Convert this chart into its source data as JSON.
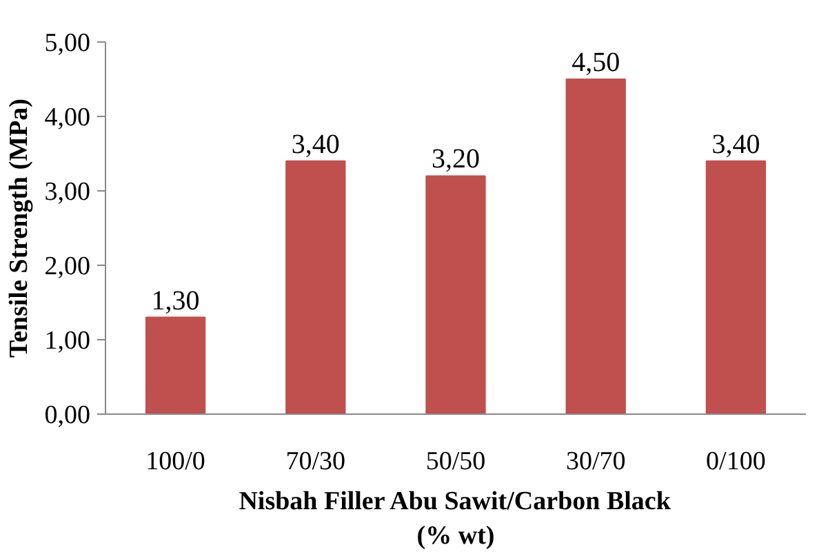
{
  "chart_data": {
    "type": "bar",
    "ylabel": "Tensile Strength (MPa)",
    "xlabel": "Nisbah Filler Abu Sawit/Carbon Black\n(% wt)",
    "categories": [
      "100/0",
      "70/30",
      "50/50",
      "30/70",
      "0/100"
    ],
    "values": [
      1.3,
      3.4,
      3.2,
      4.5,
      3.4
    ],
    "value_labels": [
      "1,30",
      "3,40",
      "3,20",
      "4,50",
      "3,40"
    ],
    "color": "#c0504d",
    "ylim": [
      0,
      5
    ],
    "yticks": [
      {
        "value": 0,
        "label": "0,00"
      },
      {
        "value": 1,
        "label": "1,00"
      },
      {
        "value": 2,
        "label": "2,00"
      },
      {
        "value": 3,
        "label": "3,00"
      },
      {
        "value": 4,
        "label": "4,00"
      },
      {
        "value": 5,
        "label": "5,00"
      }
    ],
    "grid": false
  }
}
